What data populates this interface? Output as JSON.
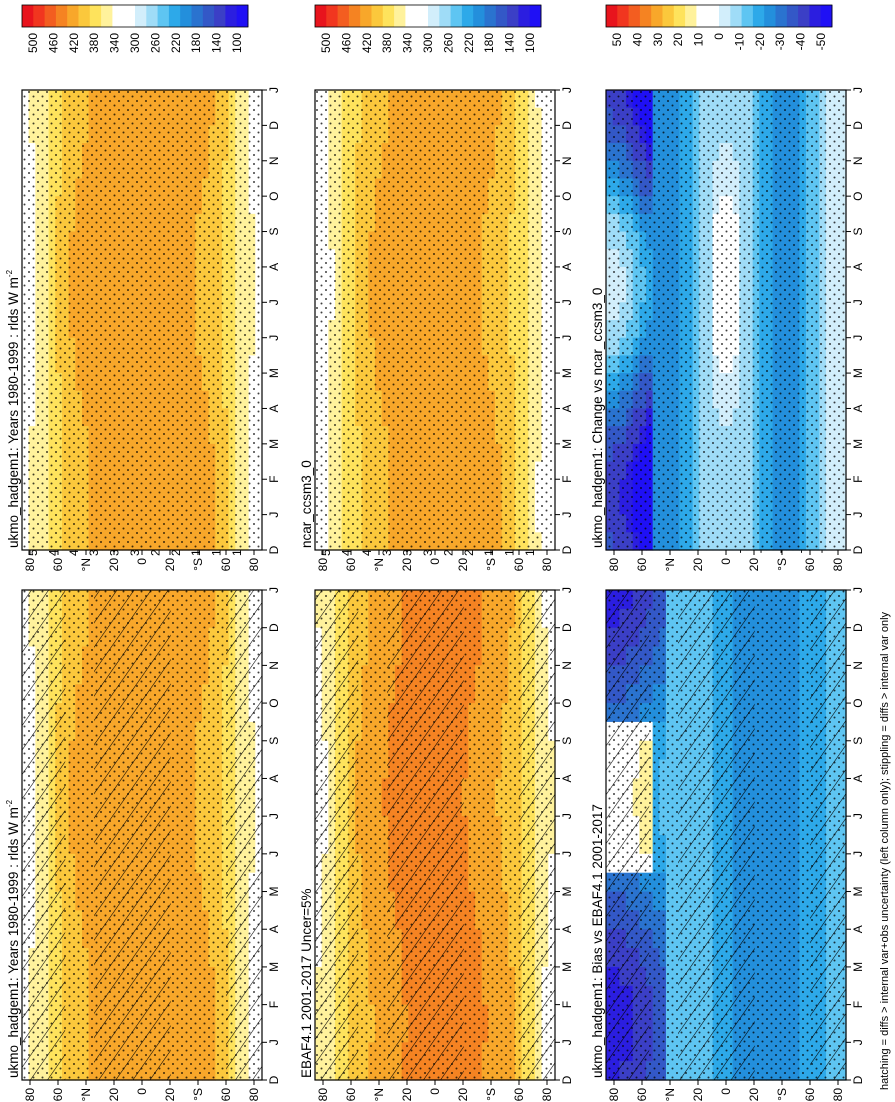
{
  "figure": {
    "footnote": "hatching = diffs > internal var+obs uncertainty (left column only); stippling = diffs > internal var only",
    "orientation_note": "rotated 90 degrees counter-clockwise"
  },
  "chart_data": [
    {
      "type": "heatmap",
      "id": "p1",
      "title": "ukmo_hadgem1: Years 1980-1999 : rlds W m",
      "title_sup": "-2",
      "x_ticks": [
        "D",
        "J",
        "F",
        "M",
        "A",
        "M",
        "J",
        "J",
        "A",
        "S",
        "O",
        "N",
        "D",
        "J"
      ],
      "y_ticks": [
        "80",
        "60",
        "N",
        "20",
        "0",
        "20",
        "S",
        "60",
        "80"
      ],
      "y_unit_marks": [
        "°N",
        "°S"
      ],
      "colorbar": {
        "labels": [
          "500",
          "460",
          "420",
          "380",
          "340",
          "300",
          "260",
          "220",
          "180",
          "140",
          "100"
        ],
        "colors": [
          "#e8141d",
          "#f1361f",
          "#f35d20",
          "#f58322",
          "#f8a72a",
          "#fbc83c",
          "#fee35c",
          "#fff29c",
          "#ffffff",
          "#ffffff",
          "#d2eefb",
          "#9fdcf7",
          "#5ec5f2",
          "#2da9e9",
          "#238fdc",
          "#2a73cf",
          "#3358c7",
          "#3b3fc6",
          "#2b1ee0",
          "#1f10f5"
        ],
        "vmin": 100,
        "vmax": 500
      },
      "hatching": true,
      "stippling": true,
      "field": "seasonal_rlds"
    },
    {
      "type": "heatmap",
      "id": "p2",
      "title": "ukmo_hadgem1: Years 1980-1999 : rlds W m",
      "title_sup": "-2",
      "x_ticks": [
        "D",
        "J",
        "F",
        "M",
        "A",
        "M",
        "J",
        "J",
        "A",
        "S",
        "O",
        "N",
        "D",
        "J"
      ],
      "y_ticks": [
        "80",
        "60",
        "N",
        "20",
        "0",
        "20",
        "S",
        "60",
        "80"
      ],
      "colorbar": {
        "labels": [
          "500",
          "460",
          "420",
          "380",
          "340",
          "300",
          "260",
          "220",
          "180",
          "140",
          "100"
        ],
        "vmin": 100,
        "vmax": 500
      },
      "hatching": false,
      "stippling": true,
      "field": "seasonal_rlds"
    },
    {
      "type": "heatmap",
      "id": "p3",
      "title": "EBAF4.1 2001-2017 Uncer=5%",
      "x_ticks": [
        "D",
        "J",
        "F",
        "M",
        "A",
        "M",
        "J",
        "J",
        "A",
        "S",
        "O",
        "N",
        "D",
        "J"
      ],
      "y_ticks": [
        "80",
        "60",
        "N",
        "20",
        "0",
        "20",
        "S",
        "60",
        "80"
      ],
      "colorbar": {
        "labels": [
          "500",
          "460",
          "420",
          "380",
          "340",
          "300",
          "260",
          "220",
          "180",
          "140",
          "100"
        ],
        "vmin": 100,
        "vmax": 500
      },
      "hatching": true,
      "stippling": true,
      "field": "seasonal_rlds"
    },
    {
      "type": "heatmap",
      "id": "p4",
      "title": "ncar_ccsm3_0",
      "x_ticks": [
        "D",
        "J",
        "F",
        "M",
        "A",
        "M",
        "J",
        "J",
        "A",
        "S",
        "O",
        "N",
        "D",
        "J"
      ],
      "y_ticks": [
        "80",
        "60",
        "N",
        "20",
        "0",
        "20",
        "S",
        "60",
        "80"
      ],
      "colorbar": {
        "labels": [
          "500",
          "460",
          "420",
          "380",
          "340",
          "300",
          "260",
          "220",
          "180",
          "140",
          "100"
        ],
        "vmin": 100,
        "vmax": 500
      },
      "hatching": false,
      "stippling": true,
      "field": "seasonal_rlds"
    },
    {
      "type": "heatmap",
      "id": "p5",
      "title": "ukmo_hadgem1: Bias vs EBAF4.1 2001-2017",
      "x_ticks": [
        "D",
        "J",
        "F",
        "M",
        "A",
        "M",
        "J",
        "J",
        "A",
        "S",
        "O",
        "N",
        "D",
        "J"
      ],
      "y_ticks": [
        "80",
        "60",
        "N",
        "20",
        "0",
        "20",
        "S",
        "60",
        "80"
      ],
      "colorbar": {
        "labels": [
          "50",
          "40",
          "30",
          "20",
          "10",
          "0",
          "-10",
          "-20",
          "-30",
          "-40",
          "-50"
        ],
        "vmin": -50,
        "vmax": 50
      },
      "hatching": true,
      "stippling": true,
      "field": "bias"
    },
    {
      "type": "heatmap",
      "id": "p6",
      "title": "ukmo_hadgem1: Change vs ncar_ccsm3_0",
      "x_ticks": [
        "D",
        "J",
        "F",
        "M",
        "A",
        "M",
        "J",
        "J",
        "A",
        "S",
        "O",
        "N",
        "D",
        "J"
      ],
      "y_ticks": [
        "80",
        "60",
        "N",
        "20",
        "0",
        "20",
        "S",
        "60",
        "80"
      ],
      "colorbar": {
        "labels": [
          "50",
          "40",
          "30",
          "20",
          "10",
          "0",
          "-10",
          "-20",
          "-30",
          "-40",
          "-50"
        ],
        "vmin": -50,
        "vmax": 50
      },
      "hatching": false,
      "stippling": true,
      "field": "change"
    }
  ]
}
